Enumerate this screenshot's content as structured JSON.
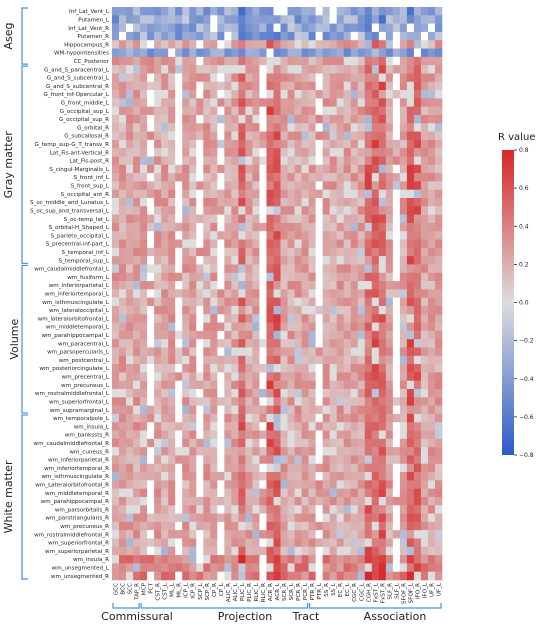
{
  "chart_data": {
    "type": "heatmap",
    "colorbar": {
      "title": "R value",
      "min": -0.8,
      "max": 0.8,
      "ticks": [
        "0.8",
        "0.6",
        "0.4",
        "0.2",
        "0.0",
        "−0.2",
        "−0.4",
        "−0.6",
        "−0.8"
      ]
    },
    "section_labels": [
      "Aseg",
      "Gray matter",
      "Volume",
      "White matter"
    ],
    "group_labels": [
      "Commissural",
      "Projection",
      "Tract",
      "Association"
    ],
    "rows": [
      "Inf_Lat_Vent_L",
      "Putamen_L",
      "Inf_Lat_Vent_R",
      "Putamen_R",
      "Hippocampus_R",
      "WM-hypointensities",
      "CC_Posterior",
      "G_and_S_paracentral_L",
      "G_and_S_subcentral_L",
      "G_and_S_subcentral_R",
      "G_front_inf-Opercular_L",
      "G_front_middle_L",
      "G_occipital_sup_L",
      "G_occipital_sup_R",
      "G_orbital_R",
      "G_subcallosal_R",
      "G_temp_sup-G_T_transv_R",
      "Lat_Fis-ant-Vertical_R",
      "Lat_Fis-post_R",
      "S_cingul-Marginalis_L",
      "S_front_inf_L",
      "S_front_sup_L",
      "S_occipital_ant_R",
      "S_oc_middle_and_Lunatus_L",
      "S_oc_sup_and_transversal_L",
      "S_oc-temp_lat_L",
      "S_orbital-H_Shaped_L",
      "S_parieto_occipital_L",
      "S_precentral-inf-part_L",
      "S_temporal_inf_L",
      "S_temporal_sup_L",
      "wm_caudalmiddlefrontal_L",
      "wm_fusiform_L",
      "wm_inferiorparietal_L",
      "wm_inferiortemporal_L",
      "wm_isthmuscingulate_L",
      "wm_lateraloccipital_L",
      "wm_lateralorbitofrontal_L",
      "wm_middletemporal_L",
      "wm_parahippocampal_L",
      "wm_paracentral_L",
      "wm_parsopercularis_L",
      "wm_postcentral_L",
      "wm_posteriorcingulate_L",
      "wm_precentral_L",
      "wm_precuneus_L",
      "wm_rostralmiddlefrontal_L",
      "wm_superiorfrontal_L",
      "wm_supramarginal_L",
      "wm_temporalpole_L",
      "wm_insula_L",
      "wm_bankssts_R",
      "wm_caudalmiddlefrontal_R",
      "wm_cuneus_R",
      "wm_inferiorparietal_R",
      "wm_inferiortemporal_R",
      "wm_isthmuscingulate_R",
      "wm_Lateralorbitofrontal_R",
      "wm_middletemporal_R",
      "wm_parahippocampal_R",
      "wm_parsorbitalis_R",
      "wm_parstriangularis_R",
      "wm_precuneus_R",
      "wm_rostralmiddlefrontal_R",
      "wm_superiorfrontal_R",
      "wm_superiorparietal_R",
      "wm_insula_R",
      "wm_unsegmented_L",
      "wm_unsegmented_R"
    ],
    "columns": [
      "GCC",
      "BCC",
      "SCC",
      "TAP_R",
      "MCP",
      "PCT",
      "CST_R",
      "CST_L",
      "ML_L",
      "ML_R",
      "ICP_L",
      "ICP_R",
      "SCP_L",
      "SCP_R",
      "CP_R",
      "CP_L",
      "ALIC_R",
      "ALIC_L",
      "PLIC_L",
      "PLIC_R",
      "RLIC_L",
      "RLIC_R",
      "ACR_R",
      "ACR_L",
      "SCR_R",
      "SCR_L",
      "PCR_R",
      "PCR_L",
      "PTR_R",
      "PTR_L",
      "SS_R",
      "SS_L",
      "EC_R",
      "EC_L",
      "CGC_R",
      "CGC_L",
      "CGH_R",
      "FxST_L",
      "FxST_R",
      "SLF_R",
      "SLF_L",
      "SFOF_R",
      "SFOF_L",
      "IFO_R",
      "IFO_L",
      "UF_R",
      "UF_L"
    ],
    "values": []
  }
}
